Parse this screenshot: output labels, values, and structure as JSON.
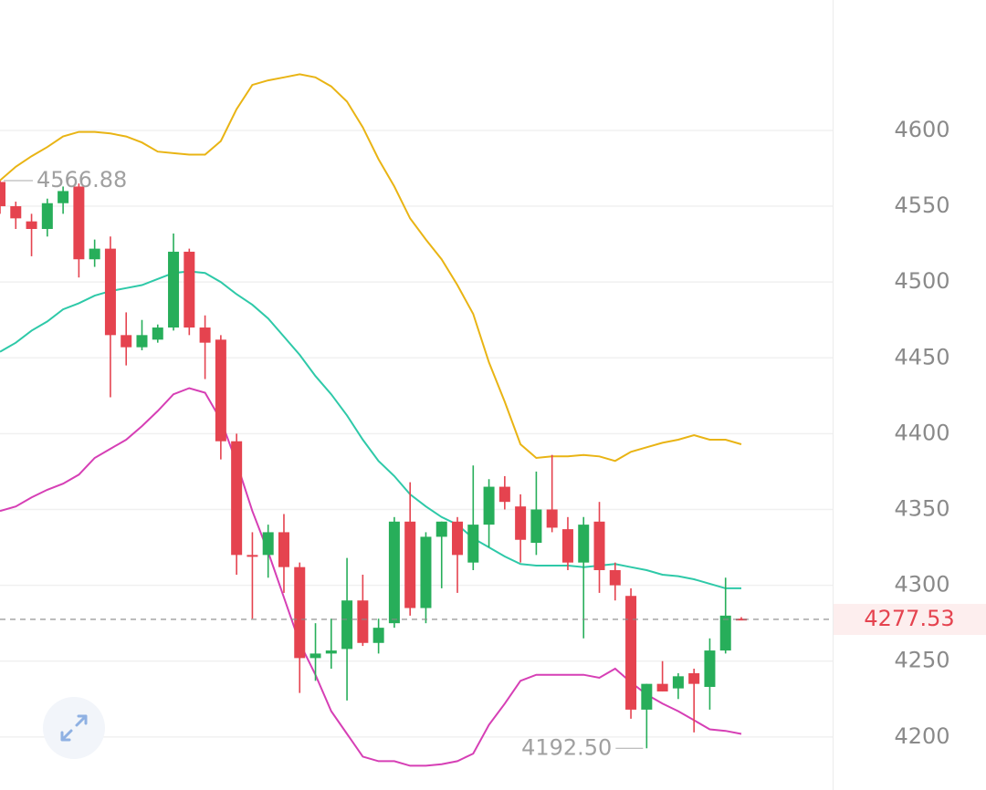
{
  "chart_data": {
    "type": "candlestick",
    "open": [
      4566,
      4550,
      4540,
      4535,
      4552,
      4563,
      4515,
      4522,
      4465,
      4457,
      4462,
      4470,
      4520,
      4470,
      4462,
      4395,
      4320,
      4320,
      4335,
      4312,
      4252,
      4255,
      4258,
      4290,
      4262,
      4275,
      4342,
      4285,
      4332,
      4342,
      4315,
      4340,
      4365,
      4352,
      4328,
      4350,
      4337,
      4315,
      4342,
      4310,
      4293,
      4218,
      4235,
      4232,
      4242,
      4233,
      4257,
      4278
    ],
    "high": [
      4566.88,
      4553,
      4545,
      4555,
      4563,
      4565,
      4528,
      4530,
      4480,
      4475,
      4472,
      4532,
      4522,
      4478,
      4465,
      4400,
      4335,
      4340,
      4347,
      4315,
      4275,
      4278,
      4318,
      4307,
      4278,
      4345,
      4368,
      4335,
      4342,
      4345,
      4379,
      4370,
      4372,
      4360,
      4375,
      4386,
      4345,
      4345,
      4355,
      4315,
      4298,
      4235,
      4250,
      4242,
      4245,
      4265,
      4305,
      4279
    ],
    "low": [
      4545,
      4535,
      4517,
      4530,
      4545,
      4503,
      4510,
      4424,
      4445,
      4455,
      4460,
      4468,
      4465,
      4436,
      4383,
      4307,
      4278,
      4305,
      4295,
      4229,
      4237,
      4245,
      4224,
      4260,
      4255,
      4272,
      4280,
      4275,
      4298,
      4295,
      4310,
      4325,
      4350,
      4315,
      4320,
      4335,
      4310,
      4265,
      4295,
      4290,
      4212,
      4192.5,
      4230,
      4225,
      4203,
      4218,
      4255,
      4277
    ],
    "close": [
      4550,
      4542,
      4535,
      4552,
      4560,
      4515,
      4522,
      4465,
      4457,
      4465,
      4470,
      4520,
      4470,
      4460,
      4395,
      4320,
      4319,
      4335,
      4312,
      4252,
      4255,
      4257,
      4290,
      4262,
      4272,
      4342,
      4285,
      4332,
      4342,
      4320,
      4340,
      4365,
      4355,
      4330,
      4350,
      4338,
      4315,
      4340,
      4310,
      4300,
      4218,
      4235,
      4230,
      4240,
      4235,
      4257,
      4280,
      4277.53
    ],
    "up_color": "#27ae5a",
    "down_color": "#e5434f",
    "bands": [
      {
        "color": "#e9b414",
        "values": [
          4567,
          4576,
          4583,
          4589,
          4596,
          4599,
          4599,
          4598,
          4596,
          4592,
          4586,
          4585,
          4584,
          4584,
          4593,
          4614,
          4630,
          4633,
          4635,
          4637,
          4635,
          4629,
          4619,
          4602,
          4581,
          4563,
          4542,
          4528,
          4515,
          4498,
          4479,
          4447,
          4421,
          4393,
          4384,
          4385,
          4385,
          4386,
          4385,
          4382,
          4388,
          4391,
          4394,
          4396,
          4399,
          4396,
          4396,
          4393
        ]
      },
      {
        "color": "#2ec9a8",
        "values": [
          4454,
          4460,
          4468,
          4474,
          4482,
          4486,
          4491,
          4494,
          4496,
          4498,
          4502,
          4506,
          4507,
          4506,
          4500,
          4492,
          4485,
          4476,
          4464,
          4452,
          4438,
          4426,
          4412,
          4396,
          4382,
          4372,
          4360,
          4352,
          4345,
          4340,
          4331,
          4325,
          4319,
          4314,
          4313,
          4313,
          4313,
          4312,
          4313,
          4314,
          4312,
          4310,
          4307,
          4306,
          4304,
          4301,
          4298,
          4298
        ]
      },
      {
        "color": "#d63fb5",
        "values": [
          4349,
          4352,
          4358,
          4363,
          4367,
          4373,
          4384,
          4390,
          4396,
          4405,
          4415,
          4426,
          4430,
          4427,
          4409,
          4381,
          4349,
          4322,
          4292,
          4262,
          4241,
          4217,
          4202,
          4187,
          4184,
          4184,
          4181,
          4181,
          4182,
          4184,
          4189,
          4208,
          4222,
          4237,
          4241,
          4241,
          4241,
          4241,
          4239,
          4245,
          4236,
          4228,
          4222,
          4217,
          4211,
          4205,
          4204,
          4202
        ]
      }
    ],
    "ylim": [
      4165,
      4686
    ],
    "yticks": [
      4200,
      4250,
      4300,
      4350,
      4400,
      4450,
      4500,
      4550,
      4600
    ],
    "grid": true,
    "max_price": 4566.88,
    "min_price": {
      "value": 4192.5,
      "label": "4192.50"
    },
    "last_price": 4277.53
  }
}
